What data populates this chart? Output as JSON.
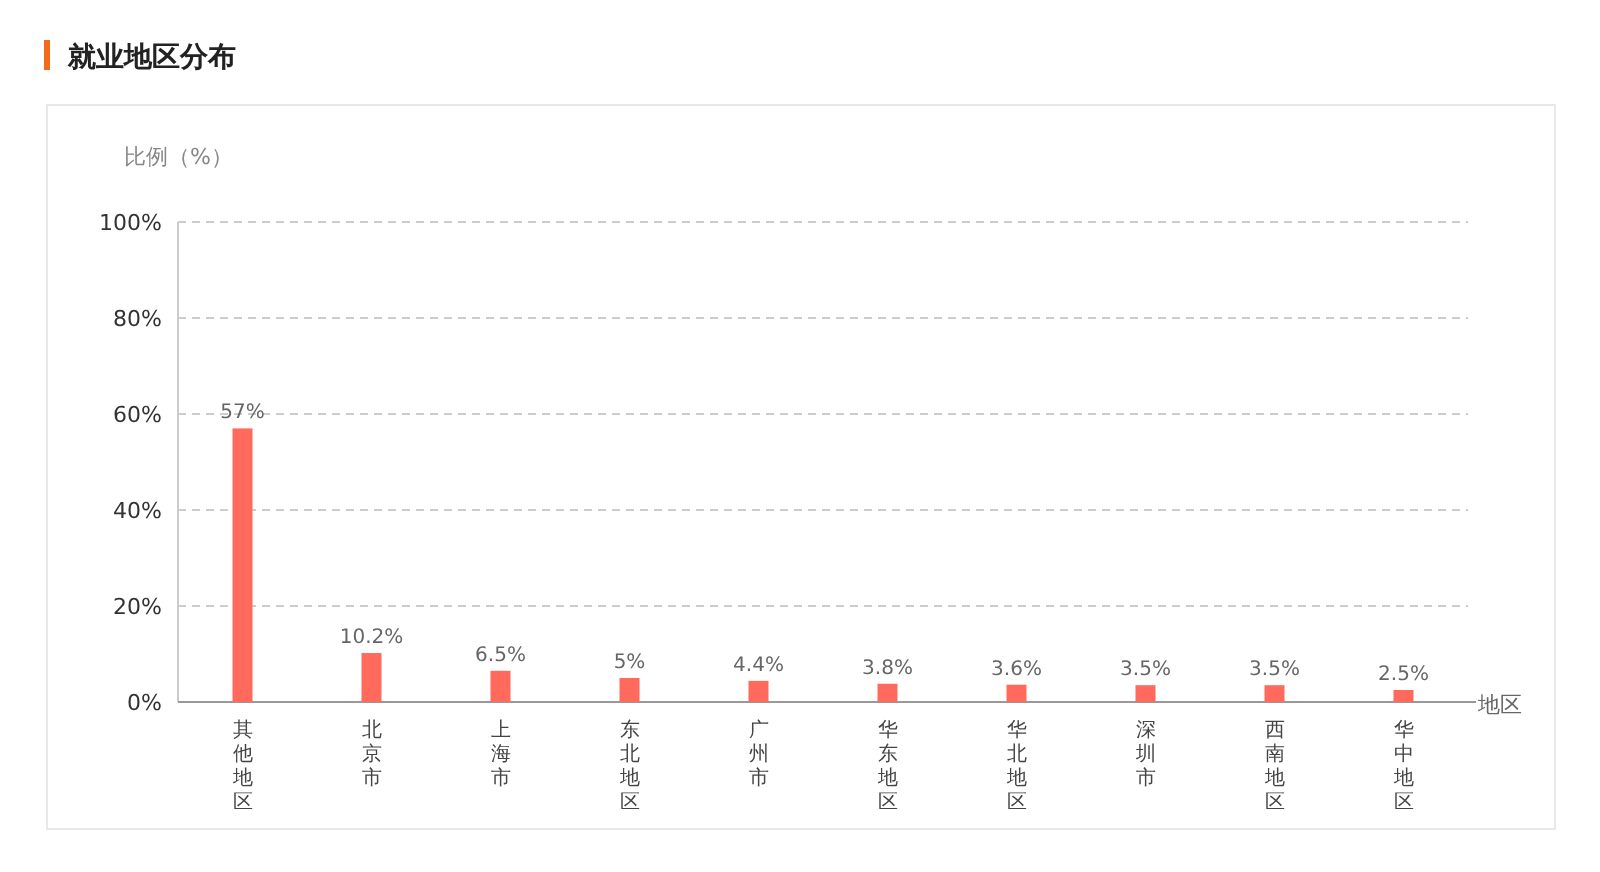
{
  "chart_data": {
    "type": "bar",
    "title": "就业地区分布",
    "ylabel": "比例（%）",
    "xlabel": "地区",
    "categories": [
      "其他地区",
      "北京市",
      "上海市",
      "东北地区",
      "广州市",
      "华东地区",
      "华北地区",
      "深圳市",
      "西南地区",
      "华中地区"
    ],
    "values": [
      57,
      10.2,
      6.5,
      5,
      4.4,
      3.8,
      3.6,
      3.5,
      3.5,
      2.5
    ],
    "value_labels": [
      "57%",
      "10.2%",
      "6.5%",
      "5%",
      "4.4%",
      "3.8%",
      "3.6%",
      "3.5%",
      "3.5%",
      "2.5%"
    ],
    "color": "#ff6a5c",
    "ylim": [
      0,
      100
    ],
    "yticks": [
      {
        "value": 0,
        "label": "0%"
      },
      {
        "value": 20,
        "label": "20%"
      },
      {
        "value": 40,
        "label": "40%"
      },
      {
        "value": 60,
        "label": "60%"
      },
      {
        "value": 80,
        "label": "80%"
      },
      {
        "value": 100,
        "label": "100%"
      }
    ],
    "grid": "y"
  }
}
